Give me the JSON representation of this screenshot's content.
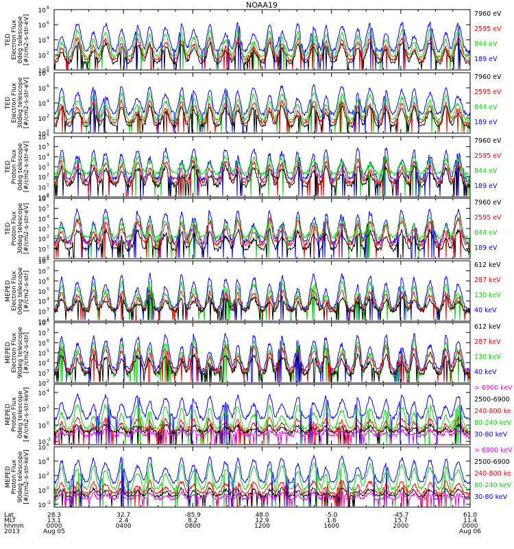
{
  "chart_data": {
    "type": "line",
    "title": "NOAA19",
    "x_axis": {
      "row_labels": [
        "Lat",
        "MLT",
        "hhmm",
        "2013"
      ],
      "ticks": [
        {
          "lat": "28.3",
          "mlt": "13.1",
          "hhmm": "0000",
          "date": "Aug 05"
        },
        {
          "lat": "32.7",
          "mlt": "2.4",
          "hhmm": "0400",
          "date": ""
        },
        {
          "lat": "-85.9",
          "mlt": "8.2",
          "hhmm": "0800",
          "date": ""
        },
        {
          "lat": "48.0",
          "mlt": "12.9",
          "hhmm": "1200",
          "date": ""
        },
        {
          "lat": "-5.0",
          "mlt": "1.6",
          "hhmm": "1600",
          "date": ""
        },
        {
          "lat": "-45.7",
          "mlt": "15.7",
          "hhmm": "2000",
          "date": ""
        },
        {
          "lat": "61.0",
          "mlt": "11.4",
          "hhmm": "0000",
          "date": "Aug 06"
        }
      ],
      "range_hours": [
        0,
        24
      ]
    },
    "panels": [
      {
        "ylabel": [
          "TED",
          "Electron Flux",
          "0deg telescope",
          "[#/cm2-s-str-eV]"
        ],
        "yticks": [
          {
            "exp": 0,
            "label": "10"
          },
          {
            "exp": 2,
            "label": "10"
          },
          {
            "exp": 4,
            "label": "10"
          },
          {
            "exp": 6,
            "label": "10"
          },
          {
            "exp": 8,
            "label": "10"
          }
        ],
        "ylim_exp": [
          0,
          8
        ],
        "series": [
          {
            "name": "7960 eV",
            "color": "#000000",
            "base": 0.8,
            "peak": 3.6
          },
          {
            "name": "2595 eV",
            "color": "#ff0000",
            "base": 1.2,
            "peak": 4.2
          },
          {
            "name": "844 eV",
            "color": "#00dd00",
            "base": 1.6,
            "peak": 5.2
          },
          {
            "name": "189 eV",
            "color": "#0000ff",
            "base": 2.4,
            "peak": 6.2
          }
        ]
      },
      {
        "ylabel": [
          "TED",
          "Electron Flux",
          "30deg telescope",
          "[#/cm2-s-str-eV]"
        ],
        "yticks": [
          {
            "exp": 0,
            "label": "10"
          },
          {
            "exp": 2,
            "label": "10"
          },
          {
            "exp": 4,
            "label": "10"
          },
          {
            "exp": 6,
            "label": "10"
          },
          {
            "exp": 8,
            "label": "10"
          }
        ],
        "ylim_exp": [
          0,
          8
        ],
        "series": [
          {
            "name": "7960 eV",
            "color": "#000000",
            "base": 0.8,
            "peak": 3.6
          },
          {
            "name": "2595 eV",
            "color": "#ff0000",
            "base": 1.2,
            "peak": 4.2
          },
          {
            "name": "844 eV",
            "color": "#00dd00",
            "base": 1.6,
            "peak": 5.2
          },
          {
            "name": "189 eV",
            "color": "#0000ff",
            "base": 2.4,
            "peak": 6.2
          }
        ]
      },
      {
        "ylabel": [
          "TED",
          "Proton Flux",
          "0deg telescope",
          "[#/cm2-s-str-eV]"
        ],
        "yticks": [
          {
            "exp": 0,
            "label": "10"
          },
          {
            "exp": 1,
            "label": "10"
          },
          {
            "exp": 2,
            "label": "10"
          },
          {
            "exp": 3,
            "label": "10"
          },
          {
            "exp": 4,
            "label": "10"
          },
          {
            "exp": 5,
            "label": "10"
          },
          {
            "exp": 6,
            "label": "10"
          }
        ],
        "ylim_exp": [
          0,
          6
        ],
        "series": [
          {
            "name": "7960 eV",
            "color": "#000000",
            "base": 1.0,
            "peak": 3.0
          },
          {
            "name": "2595 eV",
            "color": "#ff0000",
            "base": 1.3,
            "peak": 3.6
          },
          {
            "name": "844 eV",
            "color": "#00dd00",
            "base": 2.2,
            "peak": 4.0
          },
          {
            "name": "189 eV",
            "color": "#0000ff",
            "base": 1.6,
            "peak": 4.8
          }
        ]
      },
      {
        "ylabel": [
          "TED",
          "Proton Flux",
          "30deg telescope",
          "[#/cm2-s-str-eV]"
        ],
        "yticks": [
          {
            "exp": 0,
            "label": "10"
          },
          {
            "exp": 1,
            "label": "10"
          },
          {
            "exp": 2,
            "label": "10"
          },
          {
            "exp": 3,
            "label": "10"
          },
          {
            "exp": 4,
            "label": "10"
          },
          {
            "exp": 5,
            "label": "10"
          },
          {
            "exp": 6,
            "label": "10"
          }
        ],
        "ylim_exp": [
          0,
          6
        ],
        "series": [
          {
            "name": "7960 eV",
            "color": "#000000",
            "base": 0.8,
            "peak": 2.8
          },
          {
            "name": "2595 eV",
            "color": "#ff0000",
            "base": 1.3,
            "peak": 3.8
          },
          {
            "name": "844 eV",
            "color": "#00dd00",
            "base": 2.0,
            "peak": 4.0
          },
          {
            "name": "189 eV",
            "color": "#0000ff",
            "base": 1.5,
            "peak": 4.8
          }
        ]
      },
      {
        "ylabel": [
          "MEPED",
          "Electron Flux",
          "0deg telescope",
          "[#/cm2-s-str]"
        ],
        "yticks": [
          {
            "exp": 2,
            "label": "10"
          },
          {
            "exp": 3,
            "label": "10"
          },
          {
            "exp": 4,
            "label": "10"
          },
          {
            "exp": 5,
            "label": "10"
          },
          {
            "exp": 6,
            "label": "10"
          },
          {
            "exp": 7,
            "label": "10"
          },
          {
            "exp": 8,
            "label": "10"
          }
        ],
        "ylim_exp": [
          2,
          8
        ],
        "series": [
          {
            "name": "612 keV",
            "color": "#000000",
            "base": 2.9,
            "peak": 4.4
          },
          {
            "name": "287 keV",
            "color": "#ff0000",
            "base": 3.0,
            "peak": 5.0
          },
          {
            "name": "130 keV",
            "color": "#00dd00",
            "base": 2.9,
            "peak": 5.8
          },
          {
            "name": "40 keV",
            "color": "#0000ff",
            "base": 3.1,
            "peak": 6.6
          }
        ]
      },
      {
        "ylabel": [
          "MEPED",
          "Electron Flux",
          "90deg telescope",
          "[#/cm2-s-str]"
        ],
        "yticks": [
          {
            "exp": 2,
            "label": "10"
          },
          {
            "exp": 3,
            "label": "10"
          },
          {
            "exp": 4,
            "label": "10"
          },
          {
            "exp": 5,
            "label": "10"
          },
          {
            "exp": 6,
            "label": "10"
          },
          {
            "exp": 7,
            "label": "10"
          },
          {
            "exp": 8,
            "label": "10"
          }
        ],
        "ylim_exp": [
          2,
          8
        ],
        "series": [
          {
            "name": "612 keV",
            "color": "#000000",
            "base": 2.8,
            "peak": 4.8
          },
          {
            "name": "287 keV",
            "color": "#ff0000",
            "base": 3.0,
            "peak": 5.6
          },
          {
            "name": "130 keV",
            "color": "#00dd00",
            "base": 2.6,
            "peak": 6.2
          },
          {
            "name": "40 keV",
            "color": "#0000ff",
            "base": 3.2,
            "peak": 6.8
          }
        ]
      },
      {
        "ylabel": [
          "MEPED",
          "Proton Flux",
          "0deg telescope",
          "[#/cm2-s-str-keV]"
        ],
        "yticks": [
          {
            "exp": -2,
            "label": "10"
          },
          {
            "exp": 0,
            "label": "10"
          },
          {
            "exp": 2,
            "label": "10"
          },
          {
            "exp": 4,
            "label": "10"
          }
        ],
        "ylim_exp": [
          -2.4,
          5
        ],
        "series": [
          {
            "name": "> 6900 keV",
            "color": "#ee00ee",
            "base": -1.4,
            "peak": -0.6
          },
          {
            "name": "2500-6900",
            "color": "#000000",
            "base": -1.0,
            "peak": 0.0
          },
          {
            "name": "240-800 ke",
            "color": "#ff0000",
            "base": -0.9,
            "peak": 0.8
          },
          {
            "name": "80-240 keV",
            "color": "#00dd00",
            "base": -0.6,
            "peak": 2.4
          },
          {
            "name": "30-80 keV",
            "color": "#0000ff",
            "base": 0.7,
            "peak": 3.6
          }
        ]
      },
      {
        "ylabel": [
          "MEPED",
          "Proton Flux",
          "90deg telescope",
          "[#/cm2-s-str-keV]"
        ],
        "yticks": [
          {
            "exp": -2,
            "label": "10"
          },
          {
            "exp": 0,
            "label": "10"
          },
          {
            "exp": 2,
            "label": "10"
          },
          {
            "exp": 4,
            "label": "10"
          },
          {
            "exp": 6,
            "label": "10"
          }
        ],
        "ylim_exp": [
          -2.4,
          6
        ],
        "series": [
          {
            "name": "> 6900 keV",
            "color": "#ee00ee",
            "base": -1.4,
            "peak": -0.4
          },
          {
            "name": "2500-6900",
            "color": "#000000",
            "base": -1.0,
            "peak": 0.2
          },
          {
            "name": "240-800 ke",
            "color": "#ff0000",
            "base": -0.6,
            "peak": 1.2
          },
          {
            "name": "80-240 keV",
            "color": "#00dd00",
            "base": 0.0,
            "peak": 3.6
          },
          {
            "name": "30-80 keV",
            "color": "#0000ff",
            "base": 0.9,
            "peak": 4.6
          }
        ]
      }
    ]
  }
}
